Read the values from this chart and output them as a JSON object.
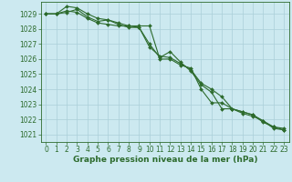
{
  "title": "Graphe pression niveau de la mer (hPa)",
  "bg_color": "#cce9f0",
  "grid_color": "#aacfd8",
  "line_color": "#2d6b2d",
  "marker_color": "#2d6b2d",
  "xlim": [
    -0.5,
    23.5
  ],
  "ylim": [
    1020.5,
    1029.8
  ],
  "yticks": [
    1021,
    1022,
    1023,
    1024,
    1025,
    1026,
    1027,
    1028,
    1029
  ],
  "xticks": [
    0,
    1,
    2,
    3,
    4,
    5,
    6,
    7,
    8,
    9,
    10,
    11,
    12,
    13,
    14,
    15,
    16,
    17,
    18,
    19,
    20,
    21,
    22,
    23
  ],
  "series": [
    [
      1029.0,
      1029.0,
      1029.5,
      1029.4,
      1029.0,
      1028.7,
      1028.6,
      1028.3,
      1028.1,
      1028.1,
      1027.0,
      1026.1,
      1026.5,
      1025.8,
      1025.2,
      1024.3,
      1023.8,
      1022.7,
      1022.7,
      1022.4,
      1022.2,
      1021.9,
      1021.4,
      1021.3
    ],
    [
      1029.0,
      1029.0,
      1029.2,
      1029.1,
      1028.7,
      1028.4,
      1028.3,
      1028.2,
      1028.2,
      1028.2,
      1028.2,
      1026.0,
      1026.0,
      1025.6,
      1025.4,
      1024.0,
      1023.1,
      1023.1,
      1022.7,
      1022.5,
      1022.3,
      1021.9,
      1021.5,
      1021.3
    ],
    [
      1029.0,
      1029.0,
      1029.1,
      1029.3,
      1028.8,
      1028.5,
      1028.6,
      1028.4,
      1028.2,
      1028.1,
      1026.8,
      1026.2,
      1026.1,
      1025.7,
      1025.3,
      1024.4,
      1024.0,
      1023.5,
      1022.7,
      1022.5,
      1022.3,
      1021.8,
      1021.5,
      1021.4
    ]
  ],
  "ylabel_fontsize": 6.5,
  "tick_fontsize": 5.5
}
